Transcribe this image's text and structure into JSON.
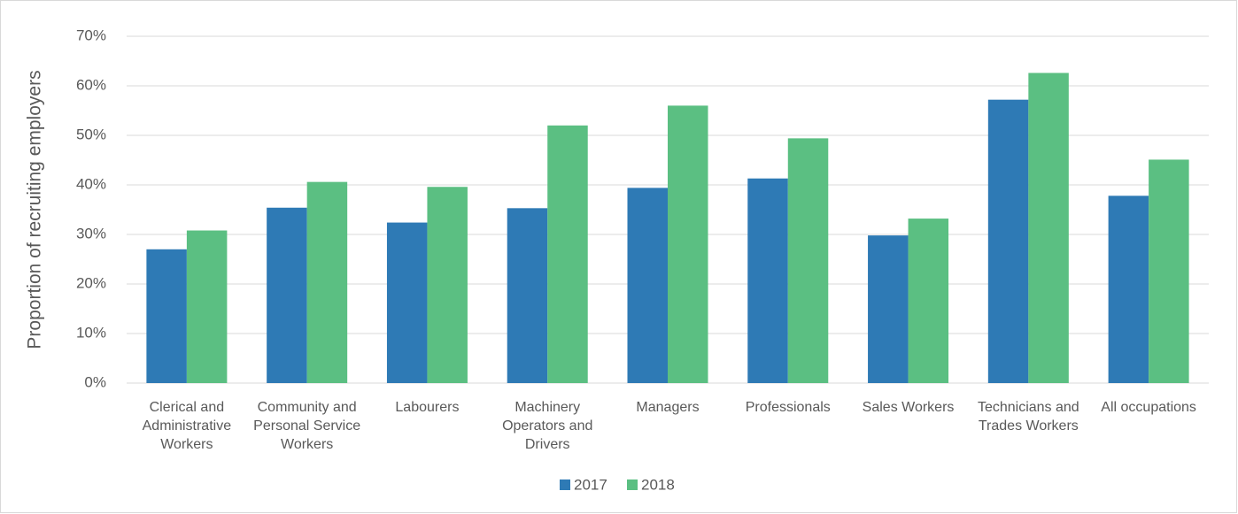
{
  "chart_data": {
    "type": "bar",
    "y_label": "Proportion of recruiting employers",
    "categories": [
      "Clerical and Administrative Workers",
      "Community and Personal Service Workers",
      "Labourers",
      "Machinery Operators and Drivers",
      "Managers",
      "Professionals",
      "Sales Workers",
      "Technicians and Trades Workers",
      "All occupations"
    ],
    "series": [
      {
        "name": "2017",
        "color": "#2e7ab5",
        "values": [
          27.0,
          35.4,
          32.4,
          35.3,
          39.4,
          41.3,
          29.8,
          57.2,
          37.8
        ]
      },
      {
        "name": "2018",
        "color": "#5bbf82",
        "values": [
          30.8,
          40.6,
          39.6,
          52.0,
          56.0,
          49.4,
          33.2,
          62.6,
          45.1
        ]
      }
    ],
    "ylim": [
      0,
      70
    ],
    "yticks": [
      {
        "value": 0,
        "label": "0%"
      },
      {
        "value": 10,
        "label": "10%"
      },
      {
        "value": 20,
        "label": "20%"
      },
      {
        "value": 30,
        "label": "30%"
      },
      {
        "value": 40,
        "label": "40%"
      },
      {
        "value": 50,
        "label": "50%"
      },
      {
        "value": 60,
        "label": "60%"
      },
      {
        "value": 70,
        "label": "70%"
      }
    ],
    "grid": true,
    "legend": "bottom"
  }
}
